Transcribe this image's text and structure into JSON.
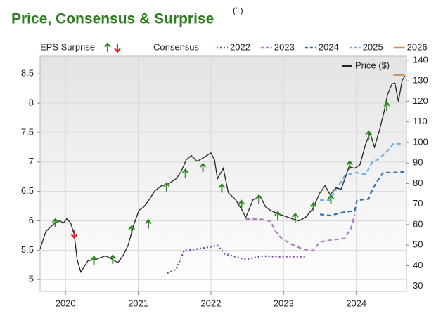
{
  "chart_data": {
    "type": "line",
    "title": "Price, Consensus & Surprise",
    "title_note": "(1)",
    "consensus_label": "Consensus",
    "xlim": [
      2019.65,
      2024.69
    ],
    "xticks": [
      2020,
      2021,
      2022,
      2023,
      2024
    ],
    "ylim": [
      4.8,
      8.8
    ],
    "yticks": [
      5,
      5.5,
      6,
      6.5,
      7,
      7.5,
      8,
      8.5
    ],
    "y2lim": [
      27.5,
      142
    ],
    "y2ticks": [
      30,
      40,
      50,
      60,
      70,
      80,
      90,
      100,
      110,
      120,
      130,
      140
    ],
    "grid": true,
    "surprises": {
      "name": "EPS Surprise",
      "up_color": "#2e8b1e",
      "down_color": "#e02020",
      "x": [
        2019.86,
        2020.12,
        2020.39,
        2020.65,
        2020.91,
        2021.14,
        2021.39,
        2021.65,
        2021.89,
        2022.15,
        2022.42,
        2022.66,
        2022.92,
        2023.16,
        2023.41,
        2023.65,
        2023.91,
        2024.17,
        2024.42
      ],
      "values": [
        5.96,
        5.78,
        5.32,
        5.34,
        5.84,
        5.94,
        6.57,
        6.8,
        6.9,
        6.55,
        6.27,
        6.36,
        6.08,
        6.05,
        6.23,
        6.36,
        6.94,
        7.45,
        7.94
      ],
      "direction": [
        "up",
        "down",
        "up",
        "up",
        "up",
        "up",
        "up",
        "up",
        "up",
        "up",
        "up",
        "up",
        "up",
        "up",
        "up",
        "up",
        "up",
        "up",
        "up"
      ]
    },
    "series": [
      {
        "name": "2022",
        "color": "#7b3f9e",
        "style": "dotted",
        "x": [
          2021.4,
          2021.52,
          2021.63,
          2021.81,
          2022.0,
          2022.09,
          2022.19,
          2022.39,
          2022.48,
          2022.58,
          2022.72,
          2022.92,
          2023.3
        ],
        "values": [
          5.11,
          5.17,
          5.49,
          5.52,
          5.56,
          5.58,
          5.44,
          5.37,
          5.34,
          5.37,
          5.4,
          5.39,
          5.39
        ]
      },
      {
        "name": "2023",
        "color": "#b07cc6",
        "style": "dashed",
        "x": [
          2022.48,
          2022.68,
          2022.82,
          2022.89,
          2022.97,
          2023.11,
          2023.26,
          2023.4,
          2023.5,
          2023.64,
          2023.84,
          2023.93,
          2023.98
        ],
        "values": [
          6.03,
          6.03,
          5.99,
          5.82,
          5.7,
          5.6,
          5.52,
          5.49,
          5.64,
          5.67,
          5.7,
          5.88,
          6.11
        ]
      },
      {
        "name": "2024",
        "color": "#2f6eb5",
        "style": "dashed",
        "x": [
          2023.5,
          2023.64,
          2023.84,
          2023.98,
          2024.01,
          2024.17,
          2024.2,
          2024.27,
          2024.37,
          2024.51,
          2024.66
        ],
        "values": [
          6.11,
          6.09,
          6.15,
          6.17,
          6.35,
          6.37,
          6.47,
          6.64,
          6.82,
          6.82,
          6.83
        ]
      },
      {
        "name": "2025",
        "color": "#5fb0e0",
        "style": "dashed",
        "x": [
          2023.5,
          2023.64,
          2023.72,
          2023.84,
          2023.98,
          2024.13,
          2024.22,
          2024.32,
          2024.42,
          2024.51,
          2024.66
        ],
        "values": [
          6.35,
          6.35,
          6.53,
          6.76,
          6.82,
          6.79,
          7.0,
          7.06,
          7.18,
          7.31,
          7.31
        ]
      },
      {
        "name": "2026",
        "color": "#c8915a",
        "style": "solid",
        "x": [
          2024.51,
          2024.66
        ],
        "values": [
          8.48,
          8.48
        ]
      },
      {
        "name": "Price ($)",
        "color": "#222222",
        "style": "solid",
        "axis": "y2",
        "x": [
          2019.65,
          2019.73,
          2019.83,
          2019.92,
          2019.97,
          2020.02,
          2020.07,
          2020.12,
          2020.16,
          2020.21,
          2020.26,
          2020.31,
          2020.41,
          2020.55,
          2020.65,
          2020.72,
          2020.79,
          2020.86,
          2020.94,
          2021.01,
          2021.08,
          2021.15,
          2021.23,
          2021.32,
          2021.42,
          2021.52,
          2021.59,
          2021.66,
          2021.73,
          2021.81,
          2021.9,
          2022.0,
          2022.05,
          2022.09,
          2022.17,
          2022.24,
          2022.34,
          2022.43,
          2022.48,
          2022.58,
          2022.68,
          2022.75,
          2022.82,
          2022.92,
          2023.01,
          2023.11,
          2023.21,
          2023.3,
          2023.4,
          2023.5,
          2023.57,
          2023.64,
          2023.72,
          2023.79,
          2023.86,
          2023.9,
          2023.98,
          2024.05,
          2024.13,
          2024.19,
          2024.25,
          2024.32,
          2024.38,
          2024.43,
          2024.49,
          2024.53,
          2024.58,
          2024.63,
          2024.67
        ],
        "values": [
          48.2,
          56.7,
          60.1,
          61.8,
          60.8,
          62.9,
          60.8,
          55,
          43,
          36.9,
          39.7,
          42.4,
          43,
          44.8,
          43,
          41.4,
          44.8,
          49.9,
          60.1,
          66.9,
          68.7,
          72.1,
          76.5,
          78.9,
          79.9,
          82.3,
          85.7,
          91.5,
          93.6,
          90.8,
          92.6,
          94.9,
          91.5,
          82.3,
          87.4,
          75.5,
          72.1,
          66.9,
          63.5,
          72.1,
          73.8,
          68.7,
          66.9,
          65.3,
          64.2,
          62.9,
          61.8,
          63.5,
          67.6,
          75.5,
          78.9,
          74.5,
          77.9,
          77.2,
          84,
          88.1,
          87.4,
          89.1,
          99.4,
          104.5,
          97.7,
          106.2,
          114.7,
          123.3,
          128.4,
          129,
          119.9,
          130.1,
          132.5
        ]
      }
    ]
  }
}
